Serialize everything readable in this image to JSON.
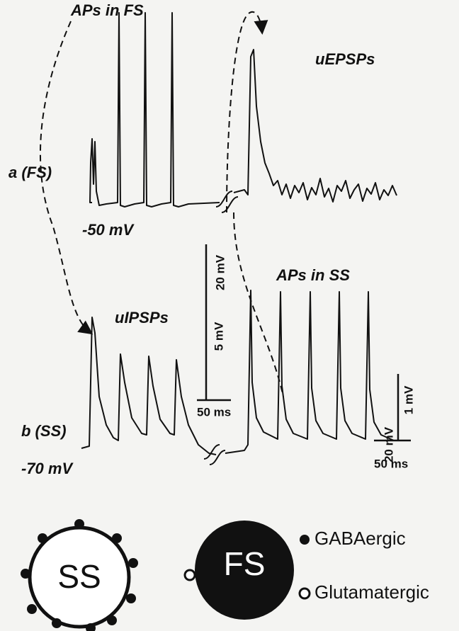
{
  "panel_a": {
    "label": "a (FS)",
    "trace_title": "APs in FS",
    "response_title": "uEPSPs",
    "potential": "-50 mV"
  },
  "panel_b": {
    "label": "b (SS)",
    "trace_title": "APs in SS",
    "response_title": "uIPSPs",
    "potential": "-70 mV"
  },
  "scale_bars": {
    "left": {
      "spike": "20 mV",
      "response": "5 mV",
      "time": "50 ms"
    },
    "right": {
      "response": "1 mV",
      "spike": "20 mV",
      "time": "50 ms"
    }
  },
  "cells": {
    "ss": "SS",
    "fs": "FS"
  },
  "legend": {
    "gabaergic": "GABAergic",
    "glutamatergic": "Glutamatergic"
  }
}
